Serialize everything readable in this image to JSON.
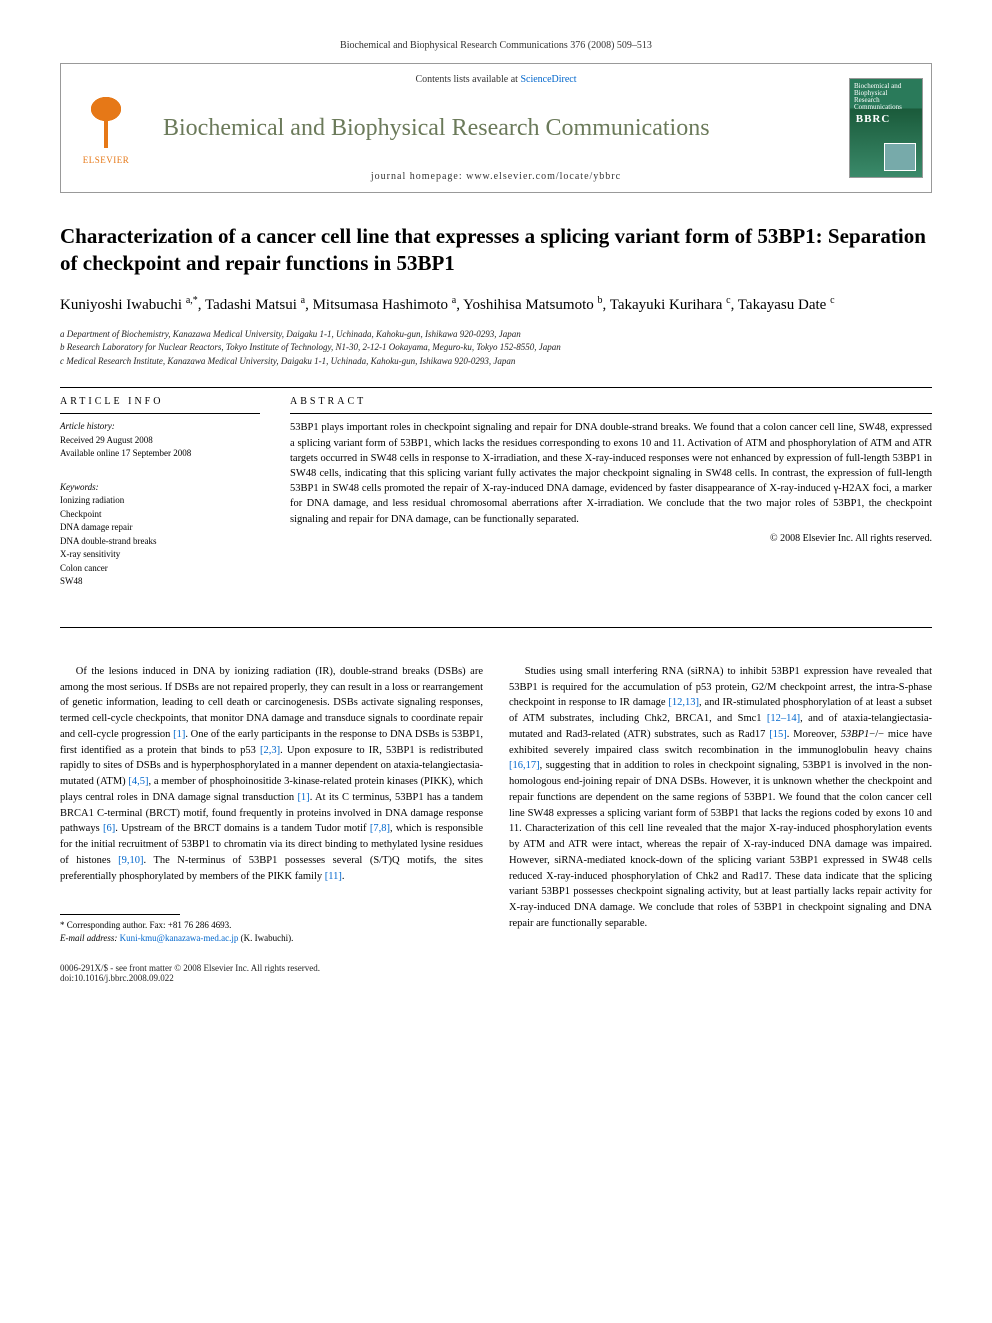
{
  "running_head": "Biochemical and Biophysical Research Communications 376 (2008) 509–513",
  "header": {
    "contents_prefix": "Contents lists available at ",
    "contents_link": "ScienceDirect",
    "journal_name": "Biochemical and Biophysical Research Communications",
    "homepage_label": "journal homepage: www.elsevier.com/locate/ybbrc",
    "publisher": "ELSEVIER"
  },
  "title": "Characterization of a cancer cell line that expresses a splicing variant form of 53BP1: Separation of checkpoint and repair functions in 53BP1",
  "authors_html": "Kuniyoshi Iwabuchi <sup>a,*</sup>, Tadashi Matsui <sup>a</sup>, Mitsumasa Hashimoto <sup>a</sup>, Yoshihisa Matsumoto <sup>b</sup>, Takayuki Kurihara <sup>c</sup>, Takayasu Date <sup>c</sup>",
  "affiliations": [
    "a Department of Biochemistry, Kanazawa Medical University, Daigaku 1-1, Uchinada, Kahoku-gun, Ishikawa 920-0293, Japan",
    "b Research Laboratory for Nuclear Reactors, Tokyo Institute of Technology, N1-30, 2-12-1 Ookayama, Meguro-ku, Tokyo 152-8550, Japan",
    "c Medical Research Institute, Kanazawa Medical University, Daigaku 1-1, Uchinada, Kahoku-gun, Ishikawa 920-0293, Japan"
  ],
  "article_info": {
    "heading": "ARTICLE INFO",
    "history_label": "Article history:",
    "received": "Received 29 August 2008",
    "online": "Available online 17 September 2008",
    "keywords_label": "Keywords:",
    "keywords": [
      "Ionizing radiation",
      "Checkpoint",
      "DNA damage repair",
      "DNA double-strand breaks",
      "X-ray sensitivity",
      "Colon cancer",
      "SW48"
    ]
  },
  "abstract": {
    "heading": "ABSTRACT",
    "text": "53BP1 plays important roles in checkpoint signaling and repair for DNA double-strand breaks. We found that a colon cancer cell line, SW48, expressed a splicing variant form of 53BP1, which lacks the residues corresponding to exons 10 and 11. Activation of ATM and phosphorylation of ATM and ATR targets occurred in SW48 cells in response to X-irradiation, and these X-ray-induced responses were not enhanced by expression of full-length 53BP1 in SW48 cells, indicating that this splicing variant fully activates the major checkpoint signaling in SW48 cells. In contrast, the expression of full-length 53BP1 in SW48 cells promoted the repair of X-ray-induced DNA damage, evidenced by faster disappearance of X-ray-induced γ-H2AX foci, a marker for DNA damage, and less residual chromosomal aberrations after X-irradiation. We conclude that the two major roles of 53BP1, the checkpoint signaling and repair for DNA damage, can be functionally separated.",
    "copyright": "© 2008 Elsevier Inc. All rights reserved."
  },
  "body": {
    "left": "Of the lesions induced in DNA by ionizing radiation (IR), double-strand breaks (DSBs) are among the most serious. If DSBs are not repaired properly, they can result in a loss or rearrangement of genetic information, leading to cell death or carcinogenesis. DSBs activate signaling responses, termed cell-cycle checkpoints, that monitor DNA damage and transduce signals to coordinate repair and cell-cycle progression [1]. One of the early participants in the response to DNA DSBs is 53BP1, first identified as a protein that binds to p53 [2,3]. Upon exposure to IR, 53BP1 is redistributed rapidly to sites of DSBs and is hyperphosphorylated in a manner dependent on ataxia-telangiectasia-mutated (ATM) [4,5], a member of phosphoinositide 3-kinase-related protein kinases (PIKK), which plays central roles in DNA damage signal transduction [1]. At its C terminus, 53BP1 has a tandem BRCA1 C-terminal (BRCT) motif, found frequently in proteins involved in DNA damage response pathways [6]. Upstream of the BRCT domains is a tandem Tudor motif [7,8], which is responsible for the initial recruitment of 53BP1 to chromatin via its direct binding to methylated lysine residues of histones [9,10]. The N-terminus of 53BP1 possesses several (S/T)Q motifs, the sites preferentially phosphorylated by members of the PIKK family [11].",
    "right": "Studies using small interfering RNA (siRNA) to inhibit 53BP1 expression have revealed that 53BP1 is required for the accumulation of p53 protein, G2/M checkpoint arrest, the intra-S-phase checkpoint in response to IR damage [12,13], and IR-stimulated phosphorylation of at least a subset of ATM substrates, including Chk2, BRCA1, and Smc1 [12–14], and of ataxia-telangiectasia-mutated and Rad3-related (ATR) substrates, such as Rad17 [15]. Moreover, 53BP1−/− mice have exhibited severely impaired class switch recombination in the immunoglobulin heavy chains [16,17], suggesting that in addition to roles in checkpoint signaling, 53BP1 is involved in the non-homologous end-joining repair of DNA DSBs. However, it is unknown whether the checkpoint and repair functions are dependent on the same regions of 53BP1. We found that the colon cancer cell line SW48 expresses a splicing variant form of 53BP1 that lacks the regions coded by exons 10 and 11. Characterization of this cell line revealed that the major X-ray-induced phosphorylation events by ATM and ATR were intact, whereas the repair of X-ray-induced DNA damage was impaired. However, siRNA-mediated knock-down of the splicing variant 53BP1 expressed in SW48 cells reduced X-ray-induced phosphorylation of Chk2 and Rad17. These data indicate that the splicing variant 53BP1 possesses checkpoint signaling activity, but at least partially lacks repair activity for X-ray-induced DNA damage. We conclude that roles of 53BP1 in checkpoint signaling and DNA repair are functionally separable."
  },
  "corresponding": {
    "star": "* Corresponding author. Fax: +81 76 286 4693.",
    "email_label": "E-mail address: ",
    "email": "Kuni-kmu@kanazawa-med.ac.jp",
    "email_suffix": " (K. Iwabuchi)."
  },
  "bottom": {
    "left1": "0006-291X/$ - see front matter © 2008 Elsevier Inc. All rights reserved.",
    "left2": "doi:10.1016/j.bbrc.2008.09.022"
  },
  "colors": {
    "elsevier_orange": "#e67817",
    "journal_green": "#6b7a5a",
    "link_blue": "#0066cc"
  }
}
